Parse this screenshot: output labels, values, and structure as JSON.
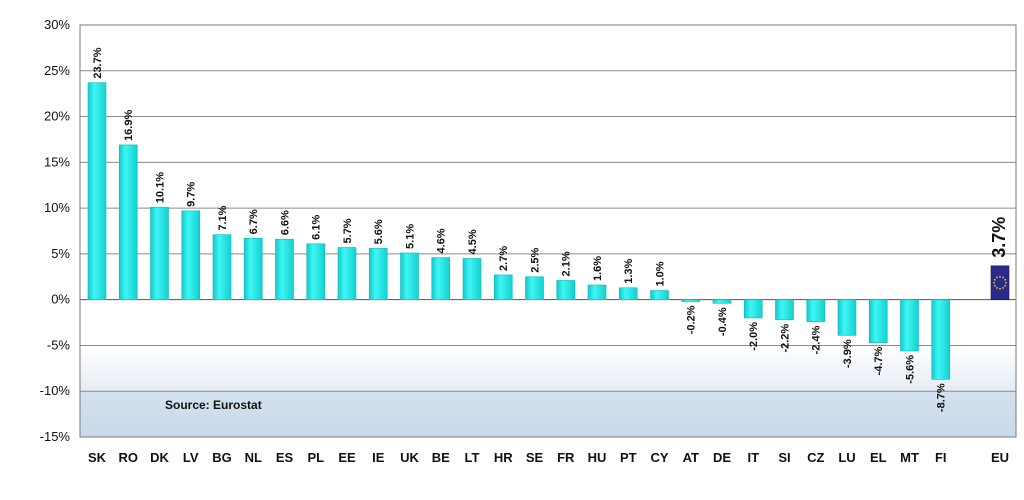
{
  "chart_data": {
    "type": "bar",
    "categories": [
      "SK",
      "RO",
      "DK",
      "LV",
      "BG",
      "NL",
      "ES",
      "PL",
      "EE",
      "IE",
      "UK",
      "BE",
      "LT",
      "HR",
      "SE",
      "FR",
      "HU",
      "PT",
      "CY",
      "AT",
      "DE",
      "IT",
      "SI",
      "CZ",
      "LU",
      "EL",
      "MT",
      "FI",
      "EU"
    ],
    "values": [
      23.7,
      16.9,
      10.1,
      9.7,
      7.1,
      6.7,
      6.6,
      6.1,
      5.7,
      5.6,
      5.1,
      4.6,
      4.5,
      2.7,
      2.5,
      2.1,
      1.6,
      1.3,
      1.0,
      -0.2,
      -0.4,
      -2.0,
      -2.2,
      -2.4,
      -3.9,
      -4.7,
      -5.6,
      -8.7,
      3.7
    ],
    "value_labels": [
      "23.7%",
      "16.9%",
      "10.1%",
      "9.7%",
      "7.1%",
      "6.7%",
      "6.6%",
      "6.1%",
      "5.7%",
      "5.6%",
      "5.1%",
      "4.6%",
      "4.5%",
      "2.7%",
      "2.5%",
      "2.1%",
      "1.6%",
      "1.3%",
      "1.0%",
      "-0.2%",
      "-0.4%",
      "-2.0%",
      "-2.2%",
      "-2.4%",
      "-3.9%",
      "-4.7%",
      "-5.6%",
      "-8.7%",
      "3.7%"
    ],
    "ylim": [
      -15,
      30
    ],
    "yticks": [
      -15,
      -10,
      -5,
      0,
      5,
      10,
      15,
      20,
      25,
      30
    ],
    "ytick_labels": [
      "-15%",
      "-10%",
      "-5%",
      "0%",
      "5%",
      "10%",
      "15%",
      "20%",
      "25%",
      "30%"
    ],
    "grid": true,
    "bar_color": "#22e8e8",
    "eu_bar_color": "#2a2a8c",
    "annotation": "Source: Eurostat"
  }
}
